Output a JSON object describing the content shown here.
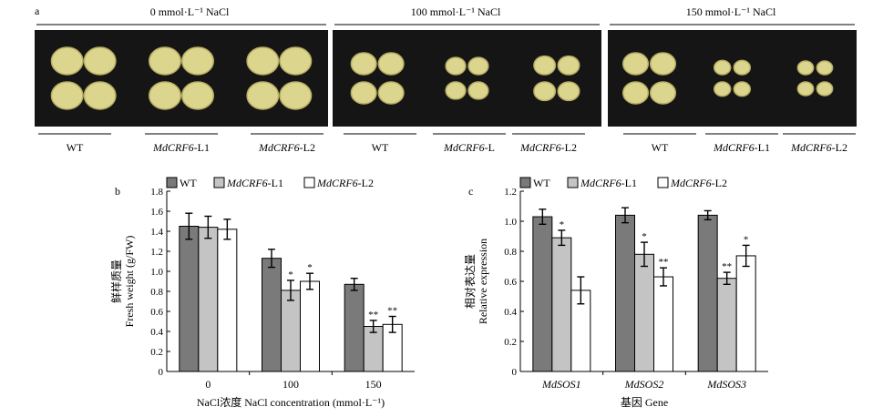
{
  "panel_a": {
    "label": "a",
    "groups": [
      {
        "title": "0 mmol·L⁻¹  NaCl",
        "genotypes": [
          "WT",
          "MdCRF6-L1",
          "MdCRF6-L2"
        ]
      },
      {
        "title": "100 mmol·L⁻¹  NaCl",
        "genotypes": [
          "WT",
          "MdCRF6-L",
          "MdCRF6-L2"
        ]
      },
      {
        "title": "150 mmol·L⁻¹  NaCl",
        "genotypes": [
          "WT",
          "MdCRF6-L1",
          "MdCRF6-L2"
        ]
      }
    ],
    "colors": {
      "background": "#151515",
      "callus": "#dcd58e",
      "callus_dark": "#b8ae64"
    },
    "callus_size": [
      [
        1.0,
        1.0,
        1.0
      ],
      [
        0.8,
        0.63,
        0.68
      ],
      [
        0.8,
        0.52,
        0.5
      ]
    ]
  },
  "chart_data": [
    {
      "type": "bar",
      "panel_label": "b",
      "categories": [
        "0",
        "100",
        "150"
      ],
      "series": [
        {
          "name": "WT",
          "values": [
            1.45,
            1.13,
            0.87
          ],
          "errors": [
            0.13,
            0.09,
            0.06
          ],
          "sig": [
            "",
            "",
            ""
          ]
        },
        {
          "name": "MdCRF6-L1",
          "values": [
            1.44,
            0.81,
            0.45
          ],
          "errors": [
            0.11,
            0.1,
            0.06
          ],
          "sig": [
            "",
            "*",
            "**"
          ]
        },
        {
          "name": "MdCRF6-L2",
          "values": [
            1.42,
            0.9,
            0.47
          ],
          "errors": [
            0.1,
            0.08,
            0.08
          ],
          "sig": [
            "",
            "*",
            "**"
          ]
        }
      ],
      "ylabel_cn": "鲜样质量",
      "ylabel": "Fresh weight (g/FW)",
      "xlabel": "NaCl浓度 NaCl concentration (mmol·L⁻¹)",
      "ylim": [
        0,
        1.8
      ],
      "yticks": [
        "0",
        "0.2",
        "0.4",
        "0.6",
        "0.8",
        "1.0",
        "1.2",
        "1.4",
        "1.6",
        "1.8"
      ]
    },
    {
      "type": "bar",
      "panel_label": "c",
      "categories": [
        "MdSOS1",
        "MdSOS2",
        "MdSOS3"
      ],
      "series": [
        {
          "name": "WT",
          "values": [
            1.03,
            1.04,
            1.04
          ],
          "errors": [
            0.05,
            0.05,
            0.03
          ],
          "sig": [
            "",
            "",
            ""
          ]
        },
        {
          "name": "MdCRF6-L1",
          "values": [
            0.89,
            0.78,
            0.62
          ],
          "errors": [
            0.05,
            0.08,
            0.04
          ],
          "sig": [
            "*",
            "*",
            "**"
          ]
        },
        {
          "name": "MdCRF6-L2",
          "values": [
            0.54,
            0.63,
            0.77
          ],
          "errors": [
            0.09,
            0.06,
            0.07
          ],
          "sig": [
            "",
            "**",
            "*"
          ]
        }
      ],
      "ylabel_cn": "相对表达量",
      "ylabel": "Relative expression",
      "xlabel": "基因 Gene",
      "ylim": [
        0,
        1.2
      ],
      "yticks": [
        "0",
        "0.2",
        "0.4",
        "0.6",
        "0.8",
        "1.0",
        "1.2"
      ]
    }
  ],
  "series_colors": [
    "#7a7a7a",
    "#c4c4c4",
    "#ffffff"
  ]
}
